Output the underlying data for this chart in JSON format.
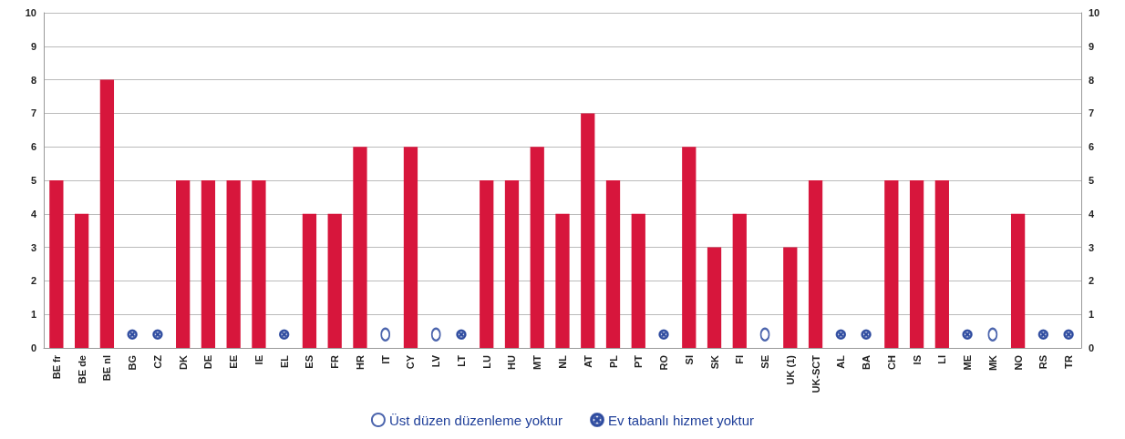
{
  "chart_data": {
    "type": "bar",
    "categories": [
      "BE fr",
      "BE de",
      "BE nl",
      "BG",
      "CZ",
      "DK",
      "DE",
      "EE",
      "IE",
      "EL",
      "ES",
      "FR",
      "HR",
      "IT",
      "CY",
      "LV",
      "LT",
      "LU",
      "HU",
      "MT",
      "NL",
      "AT",
      "PL",
      "PT",
      "RO",
      "SI",
      "SK",
      "FI",
      "SE",
      "UK (1)",
      "UK-SCT",
      "AL",
      "BA",
      "CH",
      "IS",
      "LI",
      "ME",
      "MK",
      "NO",
      "RS",
      "TR"
    ],
    "series": [
      {
        "color": "#d7163c",
        "values": [
          5,
          4,
          8,
          null,
          null,
          5,
          5,
          5,
          5,
          null,
          4,
          4,
          6,
          null,
          6,
          null,
          null,
          5,
          5,
          6,
          4,
          7,
          5,
          4,
          null,
          6,
          3,
          4,
          null,
          3,
          5,
          null,
          null,
          5,
          5,
          5,
          null,
          null,
          4,
          null,
          null
        ]
      },
      {
        "type": "scatter",
        "name": "Üst düzen düzenleme yoktur",
        "marker": "circle",
        "color": "#1f3f99",
        "x": [
          "IT",
          "LV",
          "SE",
          "MK"
        ],
        "values": [
          0.4,
          0.4,
          0.4,
          0.4
        ]
      },
      {
        "type": "scatter",
        "name": "Ev tabanlı hizmet yoktur",
        "marker": "cross",
        "color": "#1f3f99",
        "x": [
          "BG",
          "CZ",
          "EL",
          "LT",
          "RO",
          "AL",
          "BA",
          "ME",
          "RS",
          "TR"
        ],
        "values": [
          0.4,
          0.4,
          0.4,
          0.4,
          0.4,
          0.4,
          0.4,
          0.4,
          0.4,
          0.4
        ]
      }
    ],
    "ylim": [
      0,
      10
    ],
    "yticks": [
      0,
      1,
      2,
      3,
      4,
      5,
      6,
      7,
      8,
      9,
      10
    ],
    "y2lim": [
      0,
      10
    ],
    "y2ticks": [
      0,
      1,
      2,
      3,
      4,
      5,
      6,
      7,
      8,
      9,
      10
    ],
    "grid": "y",
    "legend": "bottom"
  }
}
